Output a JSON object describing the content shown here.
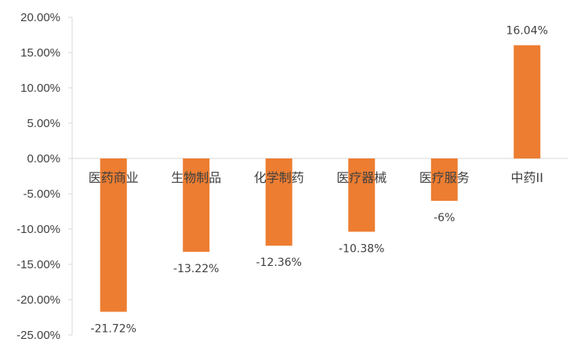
{
  "chart_data": {
    "type": "bar",
    "categories": [
      "医药商业",
      "生物制品",
      "化学制药",
      "医疗器械",
      "医疗服务",
      "中药II"
    ],
    "values": [
      -21.72,
      -13.22,
      -12.36,
      -10.38,
      -6,
      16.04
    ],
    "data_labels": [
      "-21.72%",
      "-13.22%",
      "-12.36%",
      "-10.38%",
      "-6%",
      "16.04%"
    ],
    "y_ticks": [
      "20.00%",
      "15.00%",
      "10.00%",
      "5.00%",
      "0.00%",
      "-5.00%",
      "-10.00%",
      "-15.00%",
      "-20.00%",
      "-25.00%"
    ],
    "ylim": [
      -25,
      20
    ],
    "grid": false,
    "legend": "none",
    "bar_color": "#ED7D31",
    "axis_color": "#D9D9D9"
  }
}
